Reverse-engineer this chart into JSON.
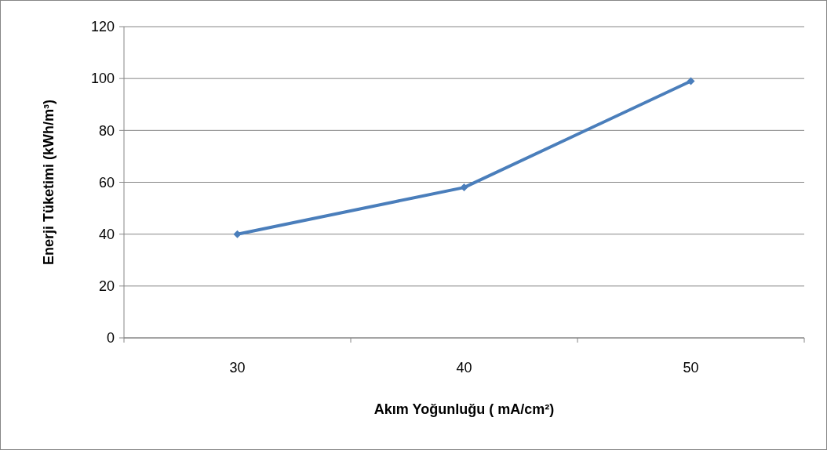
{
  "chart_data": {
    "type": "line",
    "xlabel": "Akım Yoğunluğu ( mA/cm²)",
    "ylabel": "Enerji Tüketimi (kWh/m³)",
    "categories": [
      "30",
      "40",
      "50"
    ],
    "series": [
      {
        "color": "#4a7ebb",
        "values": [
          40,
          58,
          99
        ]
      }
    ],
    "ylim": [
      0,
      120
    ],
    "yticks": [
      0,
      20,
      40,
      60,
      80,
      100,
      120
    ],
    "grid": "y",
    "marker": "diamond"
  }
}
